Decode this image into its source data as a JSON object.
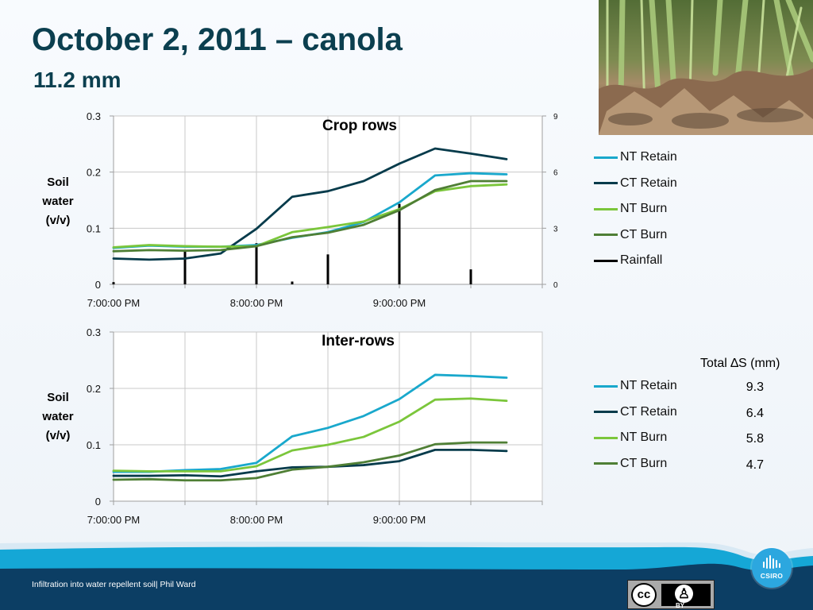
{
  "slide": {
    "title": "October 2, 2011 – canola",
    "subtitle": "11.2 mm",
    "footer": "Infiltration into water repellent soil|  Phil Ward",
    "csiro_label": "CSIRO",
    "cc_label": "cc",
    "cc_by_label": "BY"
  },
  "delta_table": {
    "title": "Total ∆S (mm)",
    "values": [
      "9.3",
      "6.4",
      "5.8",
      "4.7"
    ]
  },
  "colors": {
    "nt_retain": "#19a8cc",
    "ct_retain": "#063b4b",
    "nt_burn": "#7bc63b",
    "ct_burn": "#4f7f35",
    "rainfall": "#000000",
    "grid": "#c8c8c8",
    "footer_blue": "#0c3e64",
    "footer_accent": "#15a7d6"
  },
  "chart_data": [
    {
      "type": "line",
      "title": "Crop rows",
      "ylabel": [
        "Soil",
        "water",
        "(v/v)"
      ],
      "xlim": [
        "7:00:00 PM",
        "10:00:00 PM"
      ],
      "x_tick_labels": [
        "7:00:00 PM",
        "8:00:00 PM",
        "9:00:00 PM"
      ],
      "x_minutes": [
        0,
        15,
        30,
        45,
        60,
        75,
        90,
        105,
        120,
        135,
        150,
        165
      ],
      "ylim": [
        0,
        0.3
      ],
      "y_ticks": [
        "0",
        "0.1",
        "0.2",
        "0.3"
      ],
      "y2lim": [
        0,
        9
      ],
      "y2_ticks": [
        "0",
        "3",
        "6",
        "9"
      ],
      "legend_position": "right",
      "series": [
        {
          "name": "NT Retain",
          "color_key": "nt_retain",
          "values": [
            0.065,
            0.069,
            0.067,
            0.067,
            0.07,
            0.083,
            0.093,
            0.111,
            0.146,
            0.194,
            0.198,
            0.196
          ]
        },
        {
          "name": "CT Retain",
          "color_key": "ct_retain",
          "values": [
            0.046,
            0.044,
            0.046,
            0.055,
            0.099,
            0.156,
            0.166,
            0.184,
            0.215,
            0.242,
            0.233,
            0.223
          ]
        },
        {
          "name": "NT Burn",
          "color_key": "nt_burn",
          "values": [
            0.066,
            0.07,
            0.068,
            0.067,
            0.068,
            0.093,
            0.102,
            0.112,
            0.134,
            0.166,
            0.175,
            0.178
          ]
        },
        {
          "name": "CT Burn",
          "color_key": "ct_burn",
          "values": [
            0.059,
            0.061,
            0.06,
            0.061,
            0.068,
            0.084,
            0.092,
            0.106,
            0.132,
            0.168,
            0.184,
            0.184
          ]
        }
      ],
      "rainfall": {
        "name": "Rainfall",
        "color_key": "rainfall",
        "x_minutes": [
          0,
          30,
          60,
          75,
          90,
          120,
          150
        ],
        "values": [
          0.12,
          1.8,
          2.2,
          0.15,
          1.6,
          4.3,
          0.8
        ]
      }
    },
    {
      "type": "line",
      "title": "Inter-rows",
      "ylabel": [
        "Soil",
        "water",
        "(v/v)"
      ],
      "xlim": [
        "7:00:00 PM",
        "10:00:00 PM"
      ],
      "x_tick_labels": [
        "7:00:00 PM",
        "8:00:00 PM",
        "9:00:00 PM"
      ],
      "x_minutes": [
        0,
        15,
        30,
        45,
        60,
        75,
        90,
        105,
        120,
        135,
        150,
        165
      ],
      "ylim": [
        0,
        0.3
      ],
      "y_ticks": [
        "0",
        "0.1",
        "0.2",
        "0.3"
      ],
      "legend_position": "right",
      "series": [
        {
          "name": "NT Retain",
          "color_key": "nt_retain",
          "values": [
            0.052,
            0.052,
            0.055,
            0.057,
            0.068,
            0.115,
            0.13,
            0.151,
            0.181,
            0.224,
            0.222,
            0.219
          ]
        },
        {
          "name": "CT Retain",
          "color_key": "ct_retain",
          "values": [
            0.045,
            0.045,
            0.046,
            0.044,
            0.053,
            0.06,
            0.061,
            0.064,
            0.071,
            0.091,
            0.091,
            0.089
          ]
        },
        {
          "name": "NT Burn",
          "color_key": "nt_burn",
          "values": [
            0.054,
            0.053,
            0.053,
            0.053,
            0.062,
            0.09,
            0.1,
            0.114,
            0.141,
            0.18,
            0.182,
            0.178
          ]
        },
        {
          "name": "CT Burn",
          "color_key": "ct_burn",
          "values": [
            0.038,
            0.039,
            0.037,
            0.037,
            0.041,
            0.056,
            0.061,
            0.069,
            0.081,
            0.101,
            0.104,
            0.104
          ]
        }
      ]
    }
  ]
}
